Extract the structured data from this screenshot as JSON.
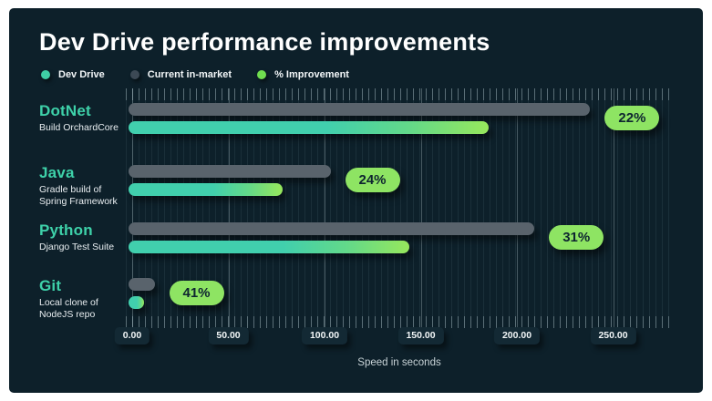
{
  "title": "Dev Drive performance improvements",
  "legend": {
    "items": [
      {
        "label": "Dev Drive",
        "color": "#3fd0a6"
      },
      {
        "label": "Current in-market",
        "color": "#3c4955"
      },
      {
        "label": "% Improvement",
        "color": "#70dd4f"
      }
    ]
  },
  "chart_data": {
    "type": "bar",
    "orientation": "horizontal",
    "title": "Dev Drive performance improvements",
    "xlabel": "Speed in seconds",
    "ylabel": "",
    "categories": [
      "DotNet",
      "Java",
      "Python",
      "Git"
    ],
    "subtitles": [
      "Build OrchardCore",
      "Gradle build of\nSpring Framework",
      "Django Test Suite",
      "Local clone of\nNodeJS repo"
    ],
    "series": [
      {
        "name": "Current in-market",
        "color": "#59636c",
        "values": [
          240,
          105,
          211,
          13.5
        ]
      },
      {
        "name": "Dev Drive",
        "color": "#41cfad",
        "values": [
          187,
          80,
          146,
          8
        ]
      }
    ],
    "improvement_labels": [
      "22%",
      "24%",
      "31%",
      "41%"
    ],
    "x_ticks": [
      "0.00",
      "50.00",
      "100.00",
      "150.00",
      "200.00",
      "250.00"
    ],
    "x_tick_values": [
      0,
      50,
      100,
      150,
      200,
      250
    ],
    "xlim": [
      0,
      280
    ],
    "grid": true,
    "legend_position": "top"
  },
  "colors": {
    "background": "#0d202a",
    "bar_gradient_end": "#97e75c",
    "badge_bg": "#8ee463",
    "badge_text": "#0e2530",
    "category_label": "#3ed1a9"
  }
}
